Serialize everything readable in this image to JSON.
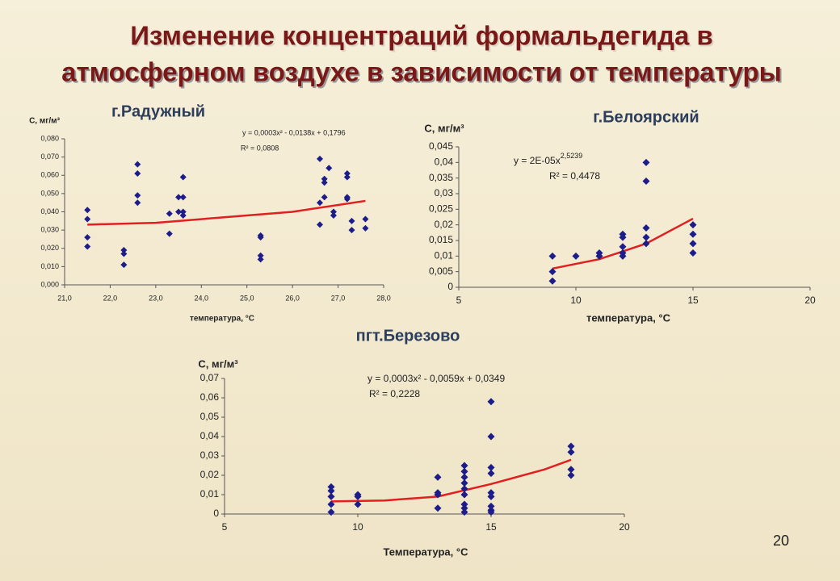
{
  "title_lines": [
    "Изменение концентраций формальдегида в",
    "атмосферном воздухе в зависимости от температуры"
  ],
  "page_number": "20",
  "chart_data": [
    {
      "type": "scatter",
      "title": "г.Радужный",
      "y_label": "С, мг/м³",
      "x_label": "температура, °С",
      "equation": "y = 0,0003x² - 0,0138x + 0,1796",
      "r_squared": "R² = 0,0808",
      "color": "#1c1c8a",
      "x": [
        21.5,
        21.5,
        21.5,
        21.5,
        22.3,
        22.3,
        22.3,
        22.6,
        22.6,
        22.6,
        22.6,
        23.3,
        23.3,
        23.5,
        23.5,
        23.6,
        23.6,
        23.6,
        23.6,
        25.3,
        25.3,
        25.3,
        25.3,
        26.6,
        26.6,
        26.6,
        26.7,
        26.7,
        26.7,
        26.8,
        26.9,
        26.9,
        27.2,
        27.2,
        27.2,
        27.2,
        27.3,
        27.3,
        27.6,
        27.6
      ],
      "values": [
        0.041,
        0.036,
        0.026,
        0.021,
        0.019,
        0.017,
        0.011,
        0.066,
        0.061,
        0.049,
        0.045,
        0.039,
        0.028,
        0.048,
        0.04,
        0.059,
        0.048,
        0.04,
        0.038,
        0.027,
        0.026,
        0.016,
        0.014,
        0.069,
        0.045,
        0.033,
        0.058,
        0.056,
        0.048,
        0.064,
        0.04,
        0.038,
        0.061,
        0.059,
        0.048,
        0.047,
        0.035,
        0.03,
        0.036,
        0.031
      ],
      "trendline": {
        "color": "#e02020",
        "x": [
          21.5,
          23,
          24.5,
          26,
          27.6
        ],
        "values": [
          0.033,
          0.034,
          0.037,
          0.04,
          0.046
        ]
      },
      "xlim": [
        21,
        28
      ],
      "ylim": [
        0,
        0.08
      ],
      "xticks": [
        {
          "value": 21,
          "label": "21,0"
        },
        {
          "value": 22,
          "label": "22,0"
        },
        {
          "value": 23,
          "label": "23,0"
        },
        {
          "value": 24,
          "label": "24,0"
        },
        {
          "value": 25,
          "label": "25,0"
        },
        {
          "value": 26,
          "label": "26,0"
        },
        {
          "value": 27,
          "label": "27,0"
        },
        {
          "value": 28,
          "label": "28,0"
        }
      ],
      "yticks": [
        {
          "value": 0,
          "label": "0,000"
        },
        {
          "value": 0.01,
          "label": "0,010"
        },
        {
          "value": 0.02,
          "label": "0,020"
        },
        {
          "value": 0.03,
          "label": "0,030"
        },
        {
          "value": 0.04,
          "label": "0,040"
        },
        {
          "value": 0.05,
          "label": "0,050"
        },
        {
          "value": 0.06,
          "label": "0,060"
        },
        {
          "value": 0.07,
          "label": "0,070"
        },
        {
          "value": 0.08,
          "label": "0,080"
        }
      ]
    },
    {
      "type": "scatter",
      "title": "г.Белоярский",
      "y_label": "С, мг/м³",
      "x_label": "температура, °С",
      "equation": {
        "text": "y = 2E-05x",
        "exponent": "2,5239"
      },
      "r_squared": "R² = 0,4478",
      "color": "#1c1c8a",
      "x": [
        9,
        9,
        9,
        10,
        11,
        11,
        12,
        12,
        12,
        12,
        12,
        13,
        13,
        13,
        13,
        13,
        15,
        15,
        15,
        15
      ],
      "values": [
        0.01,
        0.005,
        0.002,
        0.01,
        0.011,
        0.01,
        0.017,
        0.016,
        0.013,
        0.011,
        0.01,
        0.04,
        0.034,
        0.019,
        0.016,
        0.014,
        0.02,
        0.017,
        0.014,
        0.011
      ],
      "trendline": {
        "color": "#e02020",
        "x": [
          9,
          11,
          13,
          15
        ],
        "values": [
          0.006,
          0.009,
          0.014,
          0.022
        ]
      },
      "xlim": [
        5,
        20
      ],
      "ylim": [
        0,
        0.045
      ],
      "xticks": [
        5,
        10,
        15,
        20
      ],
      "yticks": [
        0,
        {
          "value": 0.005,
          "label": "0,005"
        },
        {
          "value": 0.01,
          "label": "0,01"
        },
        {
          "value": 0.015,
          "label": "0,015"
        },
        {
          "value": 0.02,
          "label": "0,02"
        },
        {
          "value": 0.025,
          "label": "0,025"
        },
        {
          "value": 0.03,
          "label": "0,03"
        },
        {
          "value": 0.035,
          "label": "0,035"
        },
        {
          "value": 0.04,
          "label": "0,04"
        },
        {
          "value": 0.045,
          "label": "0,045"
        }
      ]
    },
    {
      "type": "scatter",
      "title": "пгт.Березово",
      "y_label": "С, мг/м³",
      "x_label": "Температура, °С",
      "equation": "y = 0,0003x² - 0,0059x + 0,0349",
      "r_squared": "R² = 0,2228",
      "color": "#1c1c8a",
      "x": [
        9,
        9,
        9,
        9,
        9,
        10,
        10,
        10,
        13,
        13,
        13,
        13,
        14,
        14,
        14,
        14,
        14,
        14,
        14,
        14,
        14,
        15,
        15,
        15,
        15,
        15,
        15,
        15,
        15,
        15,
        18,
        18,
        18,
        18
      ],
      "values": [
        0.014,
        0.012,
        0.009,
        0.005,
        0.001,
        0.01,
        0.009,
        0.005,
        0.019,
        0.011,
        0.01,
        0.003,
        0.025,
        0.022,
        0.019,
        0.016,
        0.013,
        0.01,
        0.005,
        0.003,
        0.001,
        0.058,
        0.04,
        0.024,
        0.021,
        0.011,
        0.009,
        0.004,
        0.002,
        0.001,
        0.035,
        0.032,
        0.023,
        0.02
      ],
      "trendline": {
        "color": "#e02020",
        "x": [
          9,
          11,
          13,
          15,
          17,
          18
        ],
        "values": [
          0.0065,
          0.007,
          0.009,
          0.0155,
          0.023,
          0.028
        ]
      },
      "xlim": [
        5,
        20
      ],
      "ylim": [
        0,
        0.07
      ],
      "xticks": [
        5,
        10,
        15,
        20
      ],
      "yticks": [
        0,
        {
          "value": 0.01,
          "label": "0,01"
        },
        {
          "value": 0.02,
          "label": "0,02"
        },
        {
          "value": 0.03,
          "label": "0,03"
        },
        {
          "value": 0.04,
          "label": "0,04"
        },
        {
          "value": 0.05,
          "label": "0,05"
        },
        {
          "value": 0.06,
          "label": "0,06"
        },
        {
          "value": 0.07,
          "label": "0,07"
        }
      ]
    }
  ]
}
